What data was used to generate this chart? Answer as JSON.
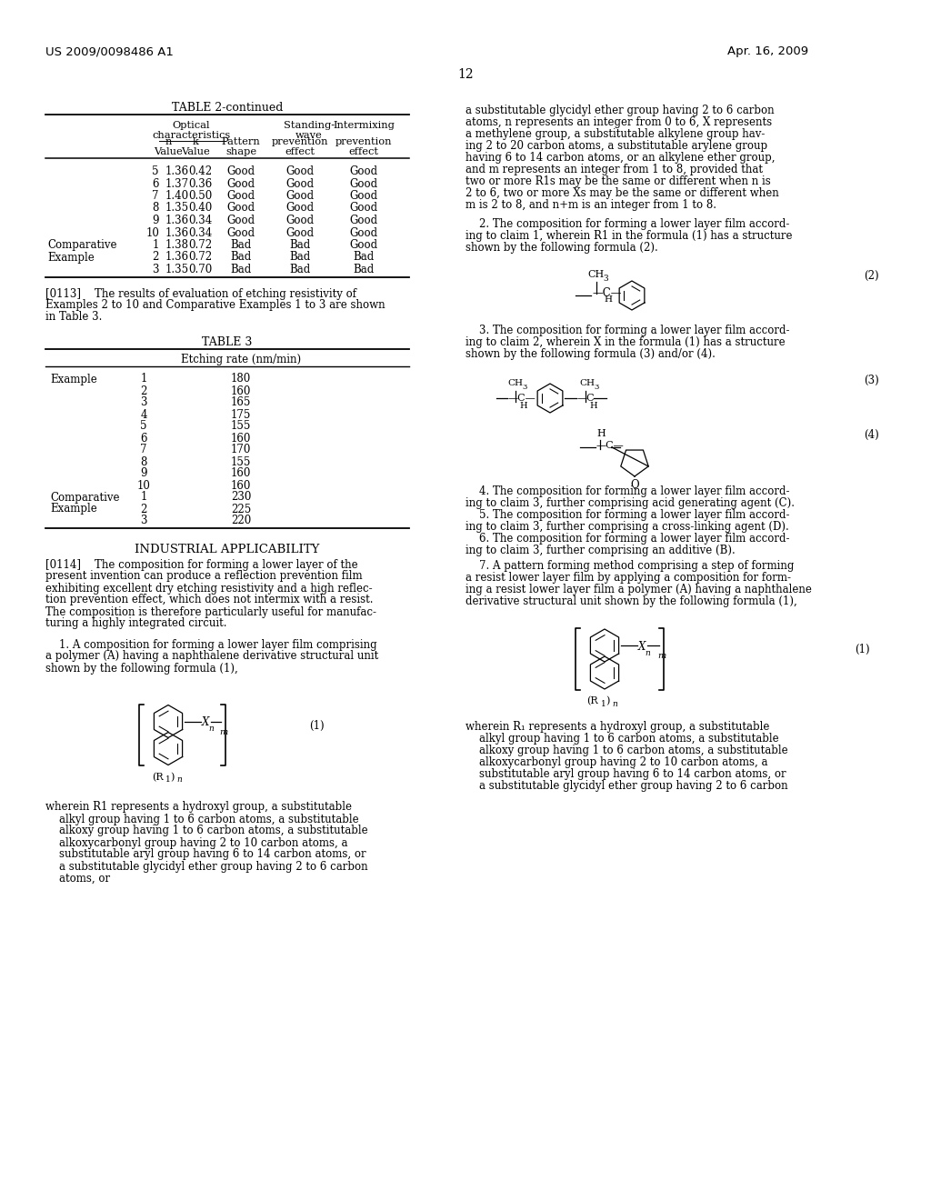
{
  "page_header_left": "US 2009/0098486 A1",
  "page_header_right": "Apr. 16, 2009",
  "page_number": "12",
  "background_color": "#ffffff",
  "table2_title": "TABLE 2-continued",
  "table2_rows": [
    [
      "",
      "5",
      "1.36",
      "0.42",
      "Good",
      "Good",
      "Good"
    ],
    [
      "",
      "6",
      "1.37",
      "0.36",
      "Good",
      "Good",
      "Good"
    ],
    [
      "",
      "7",
      "1.40",
      "0.50",
      "Good",
      "Good",
      "Good"
    ],
    [
      "",
      "8",
      "1.35",
      "0.40",
      "Good",
      "Good",
      "Good"
    ],
    [
      "",
      "9",
      "1.36",
      "0.34",
      "Good",
      "Good",
      "Good"
    ],
    [
      "",
      "10",
      "1.36",
      "0.34",
      "Good",
      "Good",
      "Good"
    ],
    [
      "Comparative",
      "1",
      "1.38",
      "0.72",
      "Bad",
      "Bad",
      "Good"
    ],
    [
      "Example",
      "2",
      "1.36",
      "0.72",
      "Bad",
      "Bad",
      "Bad"
    ],
    [
      "",
      "3",
      "1.35",
      "0.70",
      "Bad",
      "Bad",
      "Bad"
    ]
  ],
  "table3_title": "TABLE 3",
  "table3_col_header": "Etching rate (nm/min)",
  "table3_rows": [
    [
      "Example",
      "1",
      "180"
    ],
    [
      "",
      "2",
      "160"
    ],
    [
      "",
      "3",
      "165"
    ],
    [
      "",
      "4",
      "175"
    ],
    [
      "",
      "5",
      "155"
    ],
    [
      "",
      "6",
      "160"
    ],
    [
      "",
      "7",
      "170"
    ],
    [
      "",
      "8",
      "155"
    ],
    [
      "",
      "9",
      "160"
    ],
    [
      "",
      "10",
      "160"
    ],
    [
      "Comparative",
      "1",
      "230"
    ],
    [
      "Example",
      "2",
      "225"
    ],
    [
      "",
      "3",
      "220"
    ]
  ],
  "industrial_title": "INDUSTRIAL APPLICABILITY",
  "formula2_label": "(2)",
  "formula3_label": "(3)",
  "formula4_label": "(4)",
  "formula1_label_left": "(1)",
  "formula1_label_right": "(1)"
}
